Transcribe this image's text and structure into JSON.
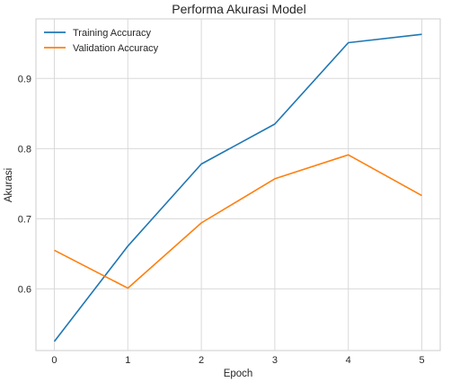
{
  "chart_data": {
    "type": "line",
    "title": "Performa Akurasi Model",
    "xlabel": "Epoch",
    "ylabel": "Akurasi",
    "x": [
      0,
      1,
      2,
      3,
      4,
      5
    ],
    "x_ticks": [
      "0",
      "1",
      "2",
      "3",
      "4",
      "5"
    ],
    "y_ticks": [
      "0.6",
      "0.7",
      "0.8",
      "0.9"
    ],
    "y_tick_values": [
      0.6,
      0.7,
      0.8,
      0.9
    ],
    "xlim": [
      -0.25,
      5.25
    ],
    "ylim": [
      0.512,
      0.985
    ],
    "grid": true,
    "legend_position": "top-left",
    "series": [
      {
        "name": "Training Accuracy",
        "color": "#1f77b4",
        "values": [
          0.525,
          0.661,
          0.778,
          0.835,
          0.951,
          0.963
        ]
      },
      {
        "name": "Validation Accuracy",
        "color": "#ff7f0e",
        "values": [
          0.655,
          0.601,
          0.694,
          0.757,
          0.791,
          0.733
        ]
      }
    ]
  }
}
